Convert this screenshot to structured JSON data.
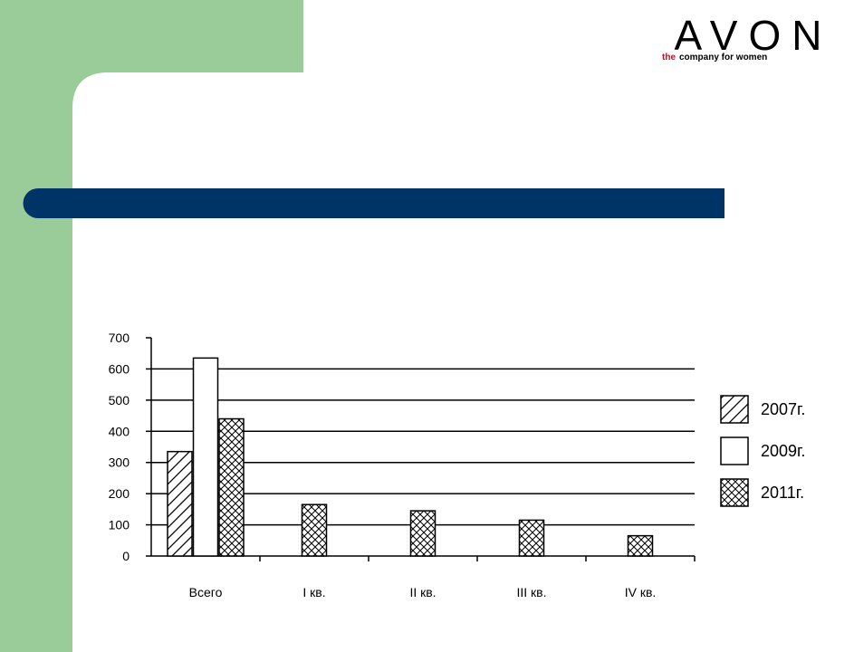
{
  "logo": {
    "brand": "AVON",
    "tagline_the": "the",
    "tagline_rest": "company for women"
  },
  "chart_data": {
    "type": "bar",
    "categories": [
      "Всего",
      "I кв.",
      "II кв.",
      "III кв.",
      "IV кв."
    ],
    "series": [
      {
        "name": "2007г.",
        "color": "#ffffff",
        "pattern": "diagonal",
        "values": [
          335,
          null,
          null,
          null,
          null
        ]
      },
      {
        "name": "2009г.",
        "color": "#ffffff",
        "pattern": "none",
        "values": [
          635,
          null,
          null,
          null,
          null
        ]
      },
      {
        "name": "2011г.",
        "color": "#ffffff",
        "pattern": "crosshatch",
        "values": [
          440,
          165,
          145,
          115,
          65
        ]
      }
    ],
    "ylim": [
      0,
      700
    ],
    "yticks": [
      0,
      100,
      200,
      300,
      400,
      500,
      600,
      700
    ],
    "grid": true,
    "legend": "right"
  }
}
